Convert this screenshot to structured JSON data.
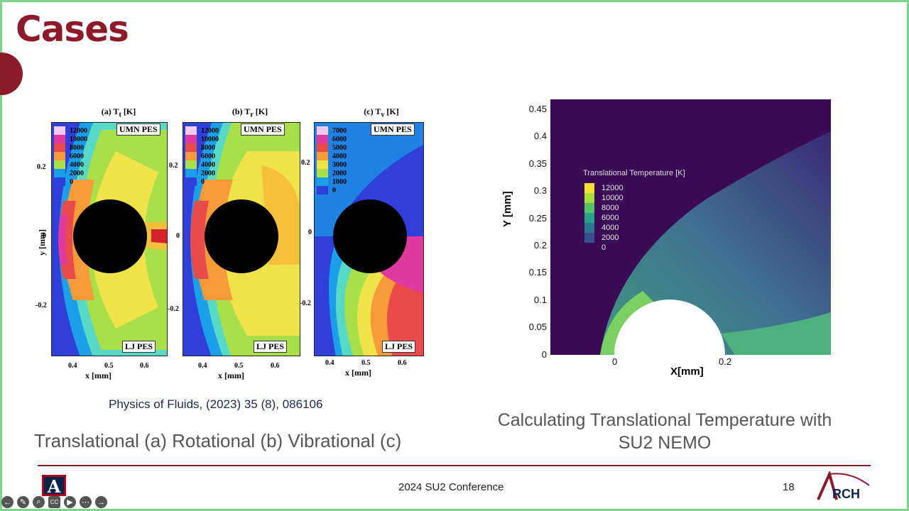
{
  "slide": {
    "title": "Cases",
    "citation": "Physics of Fluids, (2023) 35 (8), 086106",
    "caption_left": "Translational (a) Rotational (b) Vibrational (c)",
    "caption_right_line1": "Calculating Translational Temperature  with",
    "caption_right_line2": "SU2 NEMO",
    "footer": "2024 SU2 Conference",
    "page_number": "18",
    "accent_color": "#8b1a2b"
  },
  "left_figure": {
    "panels": [
      {
        "title": "(a) T",
        "sub": "t",
        "unit": " [K]",
        "top_tag": "UMN PES",
        "bottom_tag": "LJ PES",
        "legend": [
          "12000",
          "10000",
          "8000",
          "6000",
          "4000",
          "2000",
          "0"
        ]
      },
      {
        "title": "(b) T",
        "sub": "r",
        "unit": " [K]",
        "top_tag": "UMN PES",
        "bottom_tag": "LJ PES",
        "legend": [
          "12000",
          "10000",
          "8000",
          "6000",
          "4000",
          "2000",
          "0"
        ]
      },
      {
        "title": "(c) T",
        "sub": "v",
        "unit": " [K]",
        "top_tag": "UMN PES",
        "bottom_tag": "LJ PES",
        "legend": [
          "7000",
          "6000",
          "5000",
          "4000",
          "3000",
          "2000",
          "1000",
          "0"
        ]
      }
    ],
    "yticks": [
      "0.2",
      "0",
      "-0.2"
    ],
    "xticks": [
      "0.4",
      "0.5",
      "0.6"
    ],
    "xlabel": "x [mm]",
    "ylabel": "y [mm]"
  },
  "right_figure": {
    "legend_title": "Translational Temperature [K]",
    "legend": [
      "12000",
      "10000",
      "8000",
      "6000",
      "4000",
      "2000",
      "0"
    ],
    "yticks": [
      "0.45",
      "0.4",
      "0.35",
      "0.3",
      "0.25",
      "0.2",
      "0.15",
      "0.1",
      "0.05",
      "0"
    ],
    "xticks": [
      "0",
      "0.2"
    ],
    "xlabel": "X[mm]",
    "ylabel": "Y [mm]"
  },
  "logos": {
    "arch_text": "RCH",
    "ua_text": "A"
  },
  "toolbar": [
    "←",
    "✎",
    "⌕",
    "CC",
    "▶",
    "⋯",
    "→"
  ]
}
